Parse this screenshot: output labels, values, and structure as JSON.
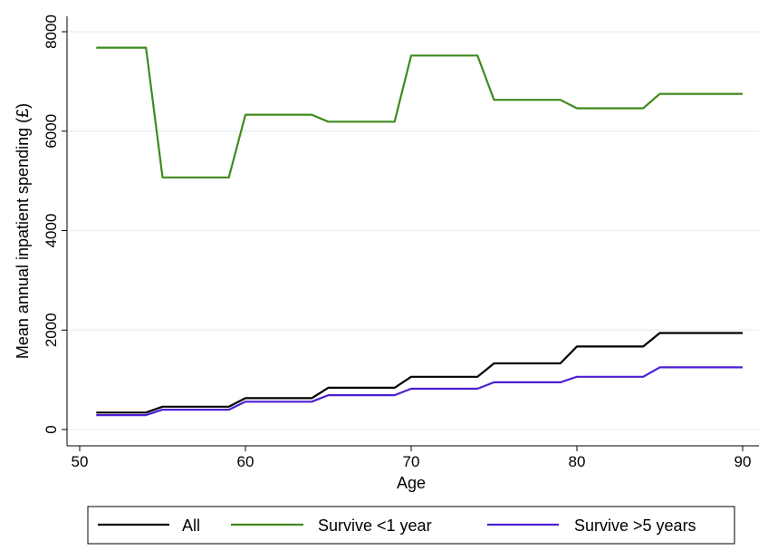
{
  "chart_data": {
    "type": "line",
    "title": "",
    "xlabel": "Age",
    "ylabel": "Mean annual inpatient spending (£)",
    "xlim": [
      50,
      90
    ],
    "ylim": [
      0,
      8000
    ],
    "xticks": [
      50,
      60,
      70,
      80,
      90
    ],
    "yticks": [
      0,
      2000,
      4000,
      6000,
      8000
    ],
    "grid": "horizontal",
    "legend_position": "bottom",
    "series": [
      {
        "name": "All",
        "color": "#000000",
        "x": [
          51,
          54,
          55,
          59,
          60,
          64,
          65,
          69,
          70,
          74,
          75,
          79,
          80,
          84,
          85,
          90
        ],
        "y": [
          340,
          340,
          460,
          460,
          630,
          630,
          840,
          840,
          1060,
          1060,
          1330,
          1330,
          1670,
          1670,
          1940,
          1940
        ]
      },
      {
        "name": "Survive <1 year",
        "color": "#3f8a1f",
        "x": [
          51,
          54,
          55,
          59,
          60,
          64,
          65,
          69,
          70,
          74,
          75,
          79,
          80,
          84,
          85,
          90
        ],
        "y": [
          7680,
          7680,
          5070,
          5070,
          6330,
          6330,
          6190,
          6190,
          7520,
          7520,
          6630,
          6630,
          6460,
          6460,
          6750,
          6750
        ]
      },
      {
        "name": "Survive >5 years",
        "color": "#4b1fd1",
        "x": [
          51,
          54,
          55,
          59,
          60,
          64,
          65,
          69,
          70,
          74,
          75,
          79,
          80,
          84,
          85,
          90
        ],
        "y": [
          290,
          290,
          400,
          400,
          560,
          560,
          690,
          690,
          820,
          820,
          950,
          950,
          1060,
          1060,
          1250,
          1250
        ]
      }
    ]
  }
}
